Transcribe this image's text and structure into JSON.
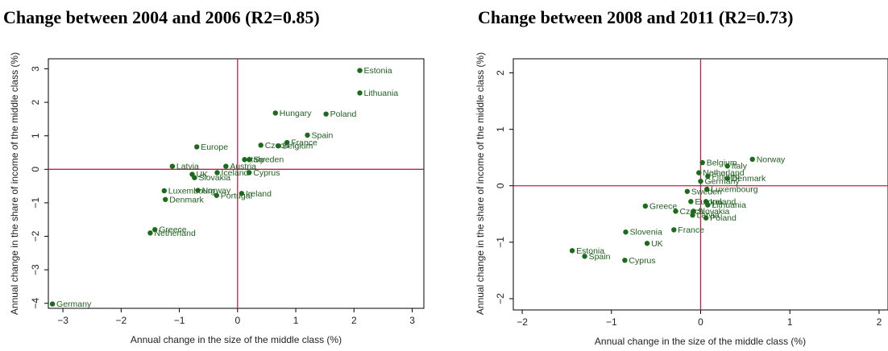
{
  "chart_data": [
    {
      "type": "scatter",
      "title": "Change between 2004 and 2006 (R2=0.85)",
      "xlabel": "Annual change in the size of the middle class (%)",
      "ylabel": "Annual change in the share of income of the middle class (%)",
      "xlim": [
        -3.25,
        3.2
      ],
      "ylim": [
        -4.15,
        3.3
      ],
      "xticks": [
        -3,
        -2,
        -1,
        0,
        1,
        2,
        3
      ],
      "yticks": [
        -4,
        -3,
        -2,
        -1,
        0,
        1,
        2,
        3
      ],
      "reference_lines": {
        "x": 0,
        "y": 0,
        "color": "#c0204a"
      },
      "marker_color": "#1a6b1a",
      "points": [
        {
          "label": "Estonia",
          "x": 2.1,
          "y": 2.95
        },
        {
          "label": "Lithuania",
          "x": 2.1,
          "y": 2.28
        },
        {
          "label": "Hungary",
          "x": 0.65,
          "y": 1.68
        },
        {
          "label": "Poland",
          "x": 1.52,
          "y": 1.65
        },
        {
          "label": "Spain",
          "x": 1.2,
          "y": 1.02
        },
        {
          "label": "France",
          "x": 0.85,
          "y": 0.8
        },
        {
          "label": "Czech",
          "x": 0.4,
          "y": 0.72
        },
        {
          "label": "Belgium",
          "x": 0.7,
          "y": 0.7
        },
        {
          "label": "Europe",
          "x": -0.7,
          "y": 0.67
        },
        {
          "label": "Italy",
          "x": 0.12,
          "y": 0.29
        },
        {
          "label": "Sweden",
          "x": 0.2,
          "y": 0.29
        },
        {
          "label": "Latvia",
          "x": -1.12,
          "y": 0.09
        },
        {
          "label": "Austria",
          "x": -0.2,
          "y": 0.09
        },
        {
          "label": "Iceland",
          "x": -0.35,
          "y": -0.1
        },
        {
          "label": "Cyprus",
          "x": 0.2,
          "y": -0.1
        },
        {
          "label": "UK",
          "x": -0.78,
          "y": -0.15
        },
        {
          "label": "Slovakia",
          "x": -0.74,
          "y": -0.25
        },
        {
          "label": "Luxembourg",
          "x": -1.26,
          "y": -0.64
        },
        {
          "label": "Norway",
          "x": -0.68,
          "y": -0.63
        },
        {
          "label": "Ireland",
          "x": 0.07,
          "y": -0.72
        },
        {
          "label": "Portugal",
          "x": -0.36,
          "y": -0.78
        },
        {
          "label": "Denmark",
          "x": -1.24,
          "y": -0.9
        },
        {
          "label": "Greece",
          "x": -1.42,
          "y": -1.8
        },
        {
          "label": "Netherland",
          "x": -1.5,
          "y": -1.9
        },
        {
          "label": "Germany",
          "x": -3.18,
          "y": -4.02
        }
      ]
    },
    {
      "type": "scatter",
      "title": "Change between 2008 and 2011 (R2=0.73)",
      "xlabel": "Annual change in the size of the middle class (%)",
      "ylabel": "Annual change in the share of income of the middle class (%)",
      "xlim": [
        -2.1,
        2.1
      ],
      "ylim": [
        -2.2,
        2.25
      ],
      "xticks": [
        -2,
        -1,
        0,
        1,
        2
      ],
      "yticks": [
        -2,
        -1,
        0,
        1,
        2
      ],
      "reference_lines": {
        "x": 0,
        "y": 0,
        "color": "#c0204a"
      },
      "marker_color": "#1a6b1a",
      "points": [
        {
          "label": "Norway",
          "x": 0.58,
          "y": 0.47
        },
        {
          "label": "Belgium",
          "x": 0.02,
          "y": 0.41
        },
        {
          "label": "Italy",
          "x": 0.3,
          "y": 0.35
        },
        {
          "label": "Netherland",
          "x": -0.02,
          "y": 0.23
        },
        {
          "label": "Finland",
          "x": 0.08,
          "y": 0.17
        },
        {
          "label": "Denmark",
          "x": 0.3,
          "y": 0.13
        },
        {
          "label": "Germany",
          "x": 0.0,
          "y": 0.08
        },
        {
          "label": "Luxembourg",
          "x": 0.07,
          "y": -0.06
        },
        {
          "label": "Sweden",
          "x": -0.15,
          "y": -0.1
        },
        {
          "label": "Europe",
          "x": -0.11,
          "y": -0.28
        },
        {
          "label": "Ireland",
          "x": 0.06,
          "y": -0.28
        },
        {
          "label": "Lithuania",
          "x": 0.08,
          "y": -0.34
        },
        {
          "label": "Greece",
          "x": -0.62,
          "y": -0.36
        },
        {
          "label": "Czech",
          "x": -0.28,
          "y": -0.45
        },
        {
          "label": "Slovakia",
          "x": -0.08,
          "y": -0.45
        },
        {
          "label": "Latvia",
          "x": -0.09,
          "y": -0.52
        },
        {
          "label": "Poland",
          "x": 0.06,
          "y": -0.57
        },
        {
          "label": "France",
          "x": -0.3,
          "y": -0.78
        },
        {
          "label": "Slovenia",
          "x": -0.84,
          "y": -0.82
        },
        {
          "label": "UK",
          "x": -0.6,
          "y": -1.02
        },
        {
          "label": "Estonia",
          "x": -1.44,
          "y": -1.15
        },
        {
          "label": "Spain",
          "x": -1.3,
          "y": -1.25
        },
        {
          "label": "Cyprus",
          "x": -0.85,
          "y": -1.32
        }
      ]
    }
  ]
}
